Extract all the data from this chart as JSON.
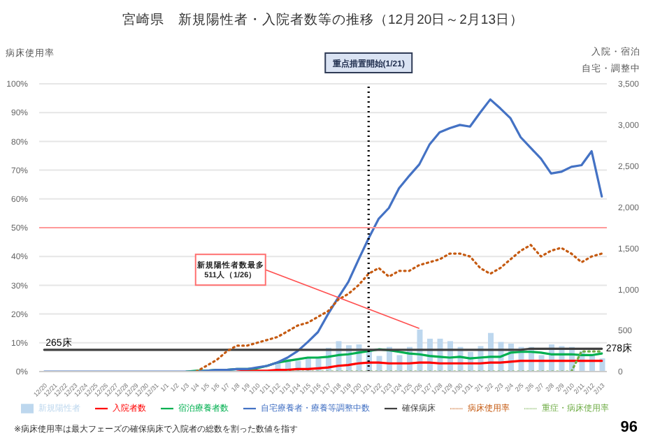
{
  "chart_data": {
    "type": "line",
    "title": "宮崎県　新規陽性者・入院者数等の推移（12月20日～2月13日）",
    "ylabel": "病床使用率",
    "y2label": "入院・宿泊自宅・調整中",
    "categories": [
      "12/20",
      "12/21",
      "12/22",
      "12/23",
      "12/24",
      "12/25",
      "12/26",
      "12/27",
      "12/28",
      "12/29",
      "12/30",
      "12/31",
      "1/1",
      "1/2",
      "1/3",
      "1/4",
      "1/5",
      "1/6",
      "1/7",
      "1/8",
      "1/9",
      "1/10",
      "1/11",
      "1/12",
      "1/13",
      "1/14",
      "1/15",
      "1/16",
      "1/17",
      "1/18",
      "1/19",
      "1/20",
      "1/21",
      "1/22",
      "1/23",
      "1/24",
      "1/25",
      "1/26",
      "1/27",
      "1/28",
      "1/29",
      "1/30",
      "1/31",
      "2/1",
      "2/2",
      "2/3",
      "2/4",
      "2/5",
      "2/6",
      "2/7",
      "2/8",
      "2/9",
      "2/10",
      "2/11",
      "2/12",
      "2/13"
    ],
    "series": [
      {
        "name": "新規陽性者",
        "type": "bar",
        "axis": "y2",
        "color": "#bdd7ee",
        "values": [
          null,
          null,
          null,
          null,
          null,
          null,
          null,
          null,
          null,
          null,
          null,
          null,
          null,
          null,
          null,
          null,
          null,
          null,
          null,
          null,
          null,
          20,
          null,
          110,
          150,
          130,
          170,
          160,
          290,
          370,
          320,
          330,
          260,
          190,
          300,
          200,
          300,
          511,
          400,
          400,
          370,
          300,
          240,
          310,
          470,
          360,
          340,
          300,
          300,
          200,
          330,
          310,
          300,
          250,
          200,
          160
        ]
      },
      {
        "name": "入院者数",
        "axis": "y2",
        "color": "#ff0000",
        "values": [
          null,
          null,
          null,
          null,
          null,
          null,
          null,
          null,
          null,
          null,
          null,
          null,
          null,
          null,
          null,
          null,
          null,
          null,
          null,
          0,
          10,
          10,
          10,
          20,
          20,
          30,
          30,
          40,
          50,
          70,
          80,
          100,
          110,
          110,
          100,
          100,
          100,
          110,
          110,
          100,
          100,
          100,
          100,
          100,
          110,
          110,
          120,
          130,
          130,
          130,
          130,
          130,
          130,
          130,
          130,
          130
        ]
      },
      {
        "name": "宿泊療養者数",
        "axis": "y2",
        "color": "#00b050",
        "values": [
          null,
          null,
          null,
          null,
          null,
          null,
          null,
          null,
          null,
          null,
          null,
          null,
          null,
          null,
          0,
          10,
          10,
          20,
          20,
          30,
          30,
          40,
          70,
          110,
          130,
          150,
          170,
          170,
          180,
          200,
          210,
          230,
          250,
          270,
          260,
          240,
          220,
          210,
          190,
          180,
          170,
          180,
          160,
          170,
          180,
          180,
          230,
          240,
          240,
          230,
          210,
          210,
          210,
          200,
          200,
          220
        ]
      },
      {
        "name": "自宅療養者・療養等調整中数",
        "axis": "y2",
        "color": "#4472c4",
        "values": [
          0,
          0,
          0,
          0,
          0,
          0,
          0,
          0,
          0,
          0,
          0,
          0,
          0,
          0,
          0,
          0,
          10,
          20,
          20,
          30,
          30,
          50,
          70,
          110,
          170,
          250,
          360,
          480,
          700,
          900,
          1090,
          1360,
          1620,
          1860,
          1990,
          2230,
          2380,
          2520,
          2760,
          2910,
          2960,
          3000,
          2980,
          3150,
          3310,
          3200,
          3080,
          2850,
          2720,
          2590,
          2410,
          2430,
          2490,
          2510,
          2680,
          2130
        ]
      },
      {
        "name": "確保病床",
        "axis": "y2",
        "color": "#404040",
        "values": [
          265,
          265,
          265,
          265,
          265,
          265,
          265,
          265,
          265,
          265,
          265,
          265,
          265,
          265,
          265,
          265,
          265,
          265,
          265,
          265,
          265,
          265,
          265,
          265,
          265,
          265,
          265,
          265,
          265,
          265,
          265,
          265,
          265,
          265,
          265,
          265,
          265,
          265,
          265,
          265,
          265,
          265,
          265,
          265,
          265,
          265,
          265,
          265,
          278,
          278,
          278,
          278,
          278,
          278,
          278,
          278
        ],
        "value_labels": [
          "265床",
          null,
          null,
          null,
          null,
          null,
          null,
          null,
          null,
          null,
          null,
          null,
          null,
          null,
          null,
          null,
          null,
          null,
          null,
          null,
          null,
          null,
          null,
          null,
          null,
          null,
          null,
          null,
          null,
          null,
          null,
          null,
          null,
          null,
          null,
          null,
          null,
          null,
          null,
          null,
          null,
          null,
          null,
          null,
          null,
          null,
          null,
          null,
          null,
          null,
          null,
          null,
          null,
          null,
          null,
          "278床"
        ]
      },
      {
        "name": "病床使用率",
        "color": "#c55a11",
        "line_style": "dotted",
        "values": [
          null,
          null,
          null,
          null,
          null,
          null,
          null,
          null,
          null,
          null,
          null,
          null,
          null,
          null,
          null,
          0,
          2,
          4,
          7,
          9,
          9,
          10,
          11,
          12,
          14,
          16,
          17,
          19,
          21,
          25,
          27,
          30,
          34,
          36,
          33,
          35,
          35,
          37,
          38,
          39,
          41,
          41,
          40,
          36,
          34,
          36,
          39,
          42,
          44,
          40,
          42,
          43,
          41,
          38,
          40,
          41
        ]
      },
      {
        "name": "重症・病床使用率",
        "color": "#70ad47",
        "line_style": "dotted",
        "values": [
          null,
          null,
          null,
          null,
          null,
          null,
          null,
          null,
          null,
          null,
          null,
          null,
          null,
          null,
          null,
          null,
          null,
          null,
          null,
          null,
          null,
          null,
          null,
          null,
          0,
          0,
          0,
          0,
          0,
          0,
          0,
          0,
          0,
          0,
          0,
          0,
          0,
          0,
          0,
          0,
          0,
          0,
          0,
          0,
          0,
          0,
          0,
          0,
          0,
          0,
          0,
          0,
          0,
          7,
          7,
          7
        ]
      }
    ],
    "ylim": [
      0,
      100
    ],
    "yticks": [
      {
        "value": 0,
        "label": "0%"
      },
      {
        "value": 10,
        "label": "10%"
      },
      {
        "value": 20,
        "label": "20%"
      },
      {
        "value": 30,
        "label": "30%"
      },
      {
        "value": 40,
        "label": "40%"
      },
      {
        "value": 50,
        "label": "50%"
      },
      {
        "value": 60,
        "label": "60%"
      },
      {
        "value": 70,
        "label": "70%"
      },
      {
        "value": 80,
        "label": "80%"
      },
      {
        "value": 90,
        "label": "90%"
      },
      {
        "value": 100,
        "label": "100%"
      }
    ],
    "y2lim": [
      0,
      3500
    ],
    "y2ticks": [
      0,
      500,
      {
        "value": 1000,
        "label": "1,000"
      },
      {
        "value": 1500,
        "label": "1,500"
      },
      {
        "value": 2000,
        "label": "2,000"
      },
      {
        "value": 2500,
        "label": "2,500"
      },
      {
        "value": 3000,
        "label": "3,000"
      },
      {
        "value": 3500,
        "label": "3,500"
      }
    ],
    "ref_lines": [
      {
        "axis": "x",
        "value": "1/21",
        "label": "重点措置開始(1/21)",
        "color": "#000000",
        "line_style": "dotted"
      },
      {
        "axis": "y",
        "value": 50,
        "color": "#ff9999"
      }
    ],
    "annotations": [
      {
        "text": "新規陽性者数最多 511人（1/26）",
        "x": "1/26",
        "y": 15
      },
      "※病床使用率は最大フェーズの確保病床で入院者の総数を割った数値を指す",
      "96"
    ],
    "grid": "y",
    "legend": "bottom"
  }
}
